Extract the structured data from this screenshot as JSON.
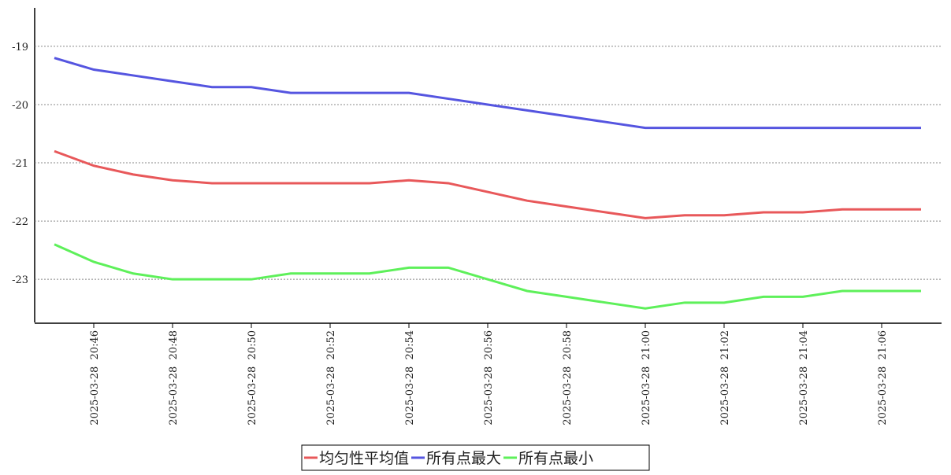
{
  "chart_data": {
    "type": "line",
    "categories": [
      null,
      "2025-03-28  20:46",
      null,
      "2025-03-28  20:48",
      null,
      "2025-03-28  20:50",
      null,
      "2025-03-28  20:52",
      null,
      "2025-03-28  20:54",
      null,
      "2025-03-28  20:56",
      null,
      "2025-03-28  20:58",
      null,
      "2025-03-28  21:00",
      null,
      "2025-03-28  21:02",
      null,
      "2025-03-28  21:04",
      null,
      "2025-03-28  21:06",
      null
    ],
    "series": [
      {
        "name": "均匀性平均值",
        "color": "#e8585a",
        "values": [
          -20.8,
          -21.05,
          -21.2,
          -21.3,
          -21.35,
          -21.35,
          -21.35,
          -21.35,
          -21.35,
          -21.3,
          -21.35,
          -21.5,
          -21.65,
          -21.75,
          -21.85,
          -21.95,
          -21.9,
          -21.9,
          -21.85,
          -21.85,
          -21.8,
          -21.8,
          -21.8
        ]
      },
      {
        "name": "所有点最大",
        "color": "#5555e0",
        "values": [
          -19.2,
          -19.4,
          -19.5,
          -19.6,
          -19.7,
          -19.7,
          -19.8,
          -19.8,
          -19.8,
          -19.8,
          -19.9,
          -20.0,
          -20.1,
          -20.2,
          -20.3,
          -20.4,
          -20.4,
          -20.4,
          -20.4,
          -20.4,
          -20.4,
          -20.4,
          -20.4
        ]
      },
      {
        "name": "所有点最小",
        "color": "#5ef05a",
        "values": [
          -22.4,
          -22.7,
          -22.9,
          -23.0,
          -23.0,
          -23.0,
          -22.9,
          -22.9,
          -22.9,
          -22.8,
          -22.8,
          -23.0,
          -23.2,
          -23.3,
          -23.4,
          -23.5,
          -23.4,
          -23.4,
          -23.3,
          -23.3,
          -23.2,
          -23.2,
          -23.2
        ]
      }
    ],
    "ylim": [
      -23.74,
      -18.34
    ],
    "yticks": [
      -19,
      -20,
      -21,
      -22,
      -23
    ],
    "grid": true,
    "legend": "bottom"
  }
}
